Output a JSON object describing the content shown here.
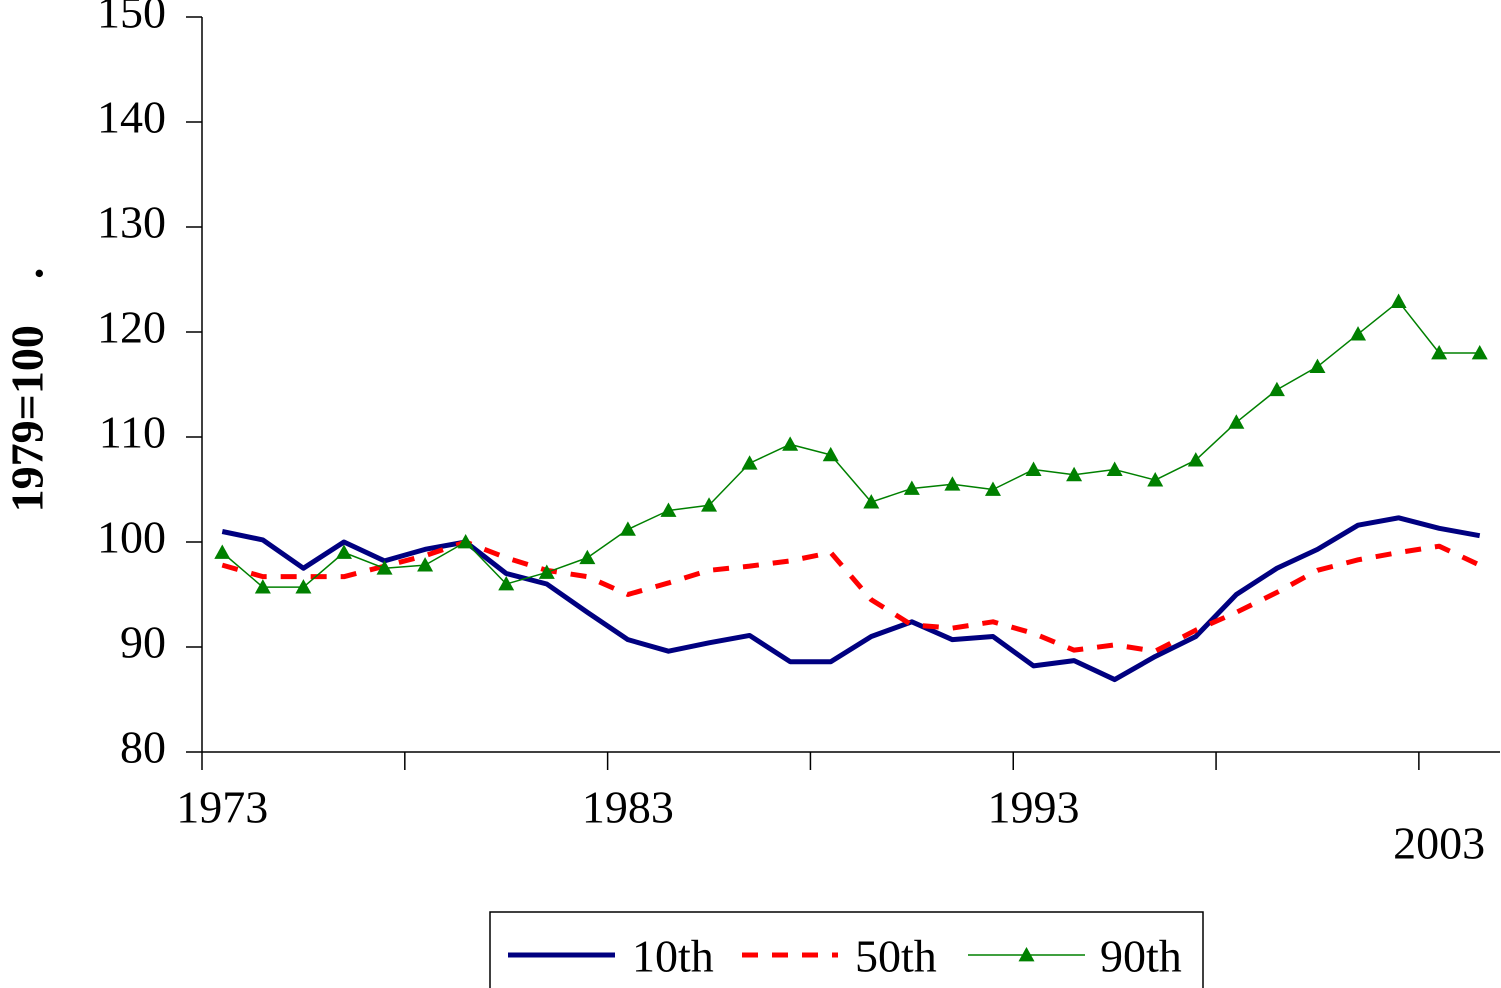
{
  "chart_data": {
    "type": "line",
    "y_label": "1979=100    .",
    "categories": [
      "1973",
      null,
      null,
      null,
      null,
      null,
      null,
      null,
      null,
      null,
      "1983",
      null,
      null,
      null,
      null,
      null,
      null,
      null,
      null,
      null,
      "1993",
      null,
      null,
      null,
      null,
      null,
      null,
      null,
      null,
      null,
      "2003",
      null
    ],
    "series": [
      {
        "name": "10th",
        "color": "#000080",
        "style": "solid",
        "values": [
          101,
          100.2,
          97.5,
          100,
          98.2,
          99.3,
          100,
          97,
          96,
          93.3,
          90.7,
          89.6,
          90.4,
          91.1,
          88.6,
          88.6,
          91,
          92.4,
          90.7,
          91,
          88.2,
          88.7,
          86.9,
          89.1,
          91,
          95,
          97.5,
          99.3,
          101.6,
          102.3,
          101.3,
          100.6
        ]
      },
      {
        "name": "50th",
        "color": "#ff0000",
        "style": "dashed",
        "values": [
          97.8,
          96.7,
          96.7,
          96.7,
          97.7,
          98.7,
          100,
          98.5,
          97.3,
          96.7,
          95,
          96.1,
          97.3,
          97.7,
          98.2,
          99,
          94.5,
          92.1,
          91.8,
          92.4,
          91.3,
          89.7,
          90.2,
          89.6,
          91.6,
          93.3,
          95.2,
          97.3,
          98.3,
          99,
          99.6,
          97.8
        ]
      },
      {
        "name": "90th",
        "color": "#008000",
        "style": "triangle",
        "values": [
          99,
          95.7,
          95.7,
          99,
          97.5,
          97.8,
          100,
          96,
          97.1,
          98.5,
          101.2,
          103,
          103.5,
          107.5,
          109.3,
          108.3,
          103.8,
          105.1,
          105.5,
          105,
          106.9,
          106.4,
          106.9,
          105.9,
          107.8,
          111.4,
          114.5,
          116.7,
          119.8,
          122.9,
          118,
          118
        ]
      }
    ],
    "ylim": [
      80,
      150
    ],
    "yticks": [
      80,
      90,
      100,
      110,
      120,
      130,
      140,
      150
    ],
    "grid": false,
    "legend": "bottom"
  }
}
